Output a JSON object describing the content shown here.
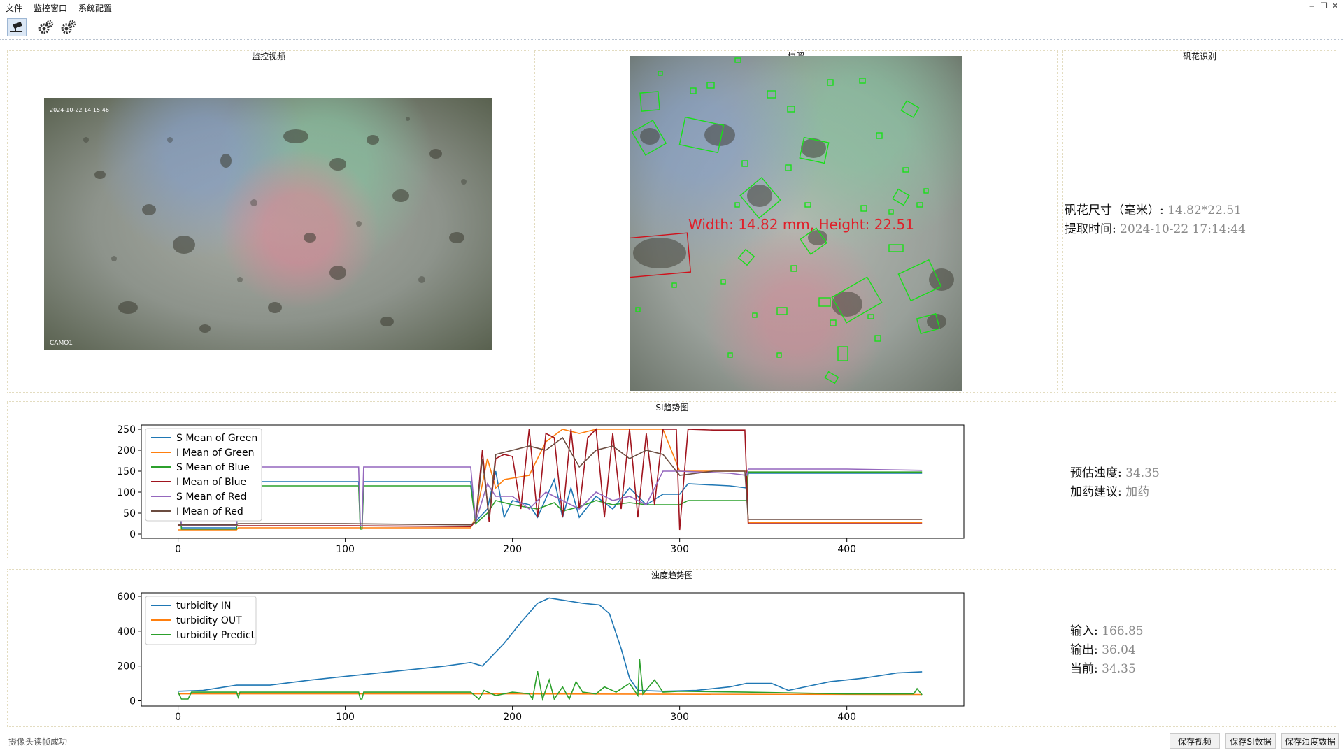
{
  "menu": {
    "file": "文件",
    "monitor_window": "监控窗口",
    "system_config": "系统配置"
  },
  "toolbar": {
    "icons": [
      "camera-icon",
      "gear-icon",
      "gear-icon"
    ]
  },
  "panels": {
    "monitor_video": "监控视频",
    "snapshot": "快照",
    "alum_floc_recognition": "矾花识别",
    "si_trend": "SI趋势图",
    "turbidity_trend": "浊度趋势图"
  },
  "camera": {
    "timestamp": "2024-10-22 14:15:46",
    "label": "CAMO1"
  },
  "snapshot": {
    "annotation": "Width: 14.82 mm, Height: 22.51"
  },
  "floc": {
    "size_label": "矾花尺寸（毫米）:",
    "size_value": "14.82*22.51",
    "time_label": "提取时间:",
    "time_value": "2024-10-22 17:14:44"
  },
  "si_info": {
    "estimated_label": "预估浊度:",
    "estimated_value": "34.35",
    "advice_label": "加药建议:",
    "advice_value": "加药"
  },
  "turbidity_info": {
    "input_label": "输入:",
    "input_value": "166.85",
    "output_label": "输出:",
    "output_value": "36.04",
    "current_label": "当前:",
    "current_value": "34.35"
  },
  "chart_data": [
    {
      "type": "line",
      "xlim": [
        -22,
        470
      ],
      "ylim": [
        -10,
        260
      ],
      "xticks": [
        0,
        100,
        200,
        300,
        400
      ],
      "yticks": [
        0,
        50,
        100,
        150,
        200,
        250
      ],
      "legend_position": "upper-left",
      "series": [
        {
          "name": "S Mean of Green",
          "color": "#1f77b4",
          "points": [
            [
              0,
              120
            ],
            [
              2,
              15
            ],
            [
              35,
              15
            ],
            [
              36,
              125
            ],
            [
              100,
              125
            ],
            [
              108,
              125
            ],
            [
              109,
              15
            ],
            [
              110,
              15
            ],
            [
              111,
              125
            ],
            [
              175,
              125
            ],
            [
              178,
              30
            ],
            [
              185,
              60
            ],
            [
              190,
              150
            ],
            [
              195,
              40
            ],
            [
              200,
              80
            ],
            [
              210,
              70
            ],
            [
              215,
              40
            ],
            [
              225,
              130
            ],
            [
              230,
              40
            ],
            [
              235,
              110
            ],
            [
              240,
              40
            ],
            [
              250,
              90
            ],
            [
              260,
              60
            ],
            [
              270,
              110
            ],
            [
              280,
              70
            ],
            [
              290,
              95
            ],
            [
              300,
              95
            ],
            [
              305,
              120
            ],
            [
              330,
              115
            ],
            [
              340,
              110
            ],
            [
              341,
              145
            ],
            [
              400,
              145
            ],
            [
              445,
              145
            ]
          ]
        },
        {
          "name": "I Mean of Green",
          "color": "#ff7f0e",
          "points": [
            [
              0,
              10
            ],
            [
              35,
              10
            ],
            [
              36,
              15
            ],
            [
              100,
              15
            ],
            [
              175,
              15
            ],
            [
              178,
              40
            ],
            [
              185,
              180
            ],
            [
              190,
              110
            ],
            [
              195,
              130
            ],
            [
              210,
              140
            ],
            [
              220,
              220
            ],
            [
              230,
              250
            ],
            [
              240,
              240
            ],
            [
              250,
              250
            ],
            [
              260,
              250
            ],
            [
              270,
              250
            ],
            [
              280,
              250
            ],
            [
              290,
              250
            ],
            [
              300,
              150
            ],
            [
              320,
              150
            ],
            [
              340,
              150
            ],
            [
              341,
              28
            ],
            [
              445,
              28
            ]
          ]
        },
        {
          "name": "S Mean of Blue",
          "color": "#2ca02c",
          "points": [
            [
              0,
              115
            ],
            [
              2,
              12
            ],
            [
              35,
              12
            ],
            [
              36,
              115
            ],
            [
              100,
              115
            ],
            [
              108,
              115
            ],
            [
              109,
              12
            ],
            [
              110,
              12
            ],
            [
              111,
              115
            ],
            [
              175,
              115
            ],
            [
              178,
              25
            ],
            [
              185,
              50
            ],
            [
              190,
              80
            ],
            [
              200,
              70
            ],
            [
              215,
              60
            ],
            [
              225,
              75
            ],
            [
              230,
              55
            ],
            [
              240,
              65
            ],
            [
              250,
              80
            ],
            [
              260,
              70
            ],
            [
              270,
              75
            ],
            [
              280,
              70
            ],
            [
              300,
              70
            ],
            [
              305,
              80
            ],
            [
              340,
              80
            ],
            [
              341,
              148
            ],
            [
              400,
              148
            ],
            [
              445,
              148
            ]
          ]
        },
        {
          "name": "I Mean of Blue",
          "color": "#a0141e",
          "points": [
            [
              0,
              20
            ],
            [
              35,
              20
            ],
            [
              36,
              20
            ],
            [
              100,
              20
            ],
            [
              175,
              18
            ],
            [
              178,
              30
            ],
            [
              182,
              200
            ],
            [
              186,
              30
            ],
            [
              190,
              180
            ],
            [
              195,
              190
            ],
            [
              200,
              185
            ],
            [
              205,
              60
            ],
            [
              210,
              250
            ],
            [
              215,
              40
            ],
            [
              220,
              240
            ],
            [
              225,
              230
            ],
            [
              230,
              40
            ],
            [
              235,
              250
            ],
            [
              240,
              60
            ],
            [
              245,
              230
            ],
            [
              250,
              250
            ],
            [
              255,
              40
            ],
            [
              260,
              240
            ],
            [
              265,
              60
            ],
            [
              270,
              250
            ],
            [
              275,
              40
            ],
            [
              280,
              240
            ],
            [
              285,
              70
            ],
            [
              290,
              250
            ],
            [
              298,
              250
            ],
            [
              300,
              10
            ],
            [
              305,
              250
            ],
            [
              320,
              248
            ],
            [
              339,
              248
            ],
            [
              341,
              25
            ],
            [
              445,
              25
            ]
          ]
        },
        {
          "name": "S Mean of Red",
          "color": "#9467bd",
          "points": [
            [
              0,
              165
            ],
            [
              2,
              20
            ],
            [
              35,
              20
            ],
            [
              36,
              160
            ],
            [
              100,
              160
            ],
            [
              108,
              160
            ],
            [
              109,
              20
            ],
            [
              110,
              20
            ],
            [
              111,
              160
            ],
            [
              175,
              160
            ],
            [
              178,
              30
            ],
            [
              185,
              120
            ],
            [
              190,
              90
            ],
            [
              200,
              90
            ],
            [
              210,
              60
            ],
            [
              220,
              100
            ],
            [
              230,
              80
            ],
            [
              240,
              60
            ],
            [
              250,
              100
            ],
            [
              260,
              80
            ],
            [
              270,
              90
            ],
            [
              280,
              70
            ],
            [
              290,
              150
            ],
            [
              300,
              150
            ],
            [
              330,
              145
            ],
            [
              340,
              140
            ],
            [
              341,
              155
            ],
            [
              400,
              155
            ],
            [
              445,
              152
            ]
          ]
        },
        {
          "name": "I Mean of Red",
          "color": "#6b4c40",
          "points": [
            [
              0,
              22
            ],
            [
              35,
              22
            ],
            [
              36,
              25
            ],
            [
              100,
              25
            ],
            [
              175,
              22
            ],
            [
              178,
              30
            ],
            [
              182,
              180
            ],
            [
              186,
              40
            ],
            [
              190,
              190
            ],
            [
              200,
              200
            ],
            [
              210,
              210
            ],
            [
              220,
              200
            ],
            [
              230,
              230
            ],
            [
              240,
              160
            ],
            [
              250,
              200
            ],
            [
              260,
              210
            ],
            [
              270,
              180
            ],
            [
              280,
              200
            ],
            [
              290,
              190
            ],
            [
              300,
              140
            ],
            [
              320,
              150
            ],
            [
              339,
              150
            ],
            [
              341,
              35
            ],
            [
              445,
              35
            ]
          ]
        }
      ]
    },
    {
      "type": "line",
      "xlim": [
        -22,
        470
      ],
      "ylim": [
        -30,
        620
      ],
      "xticks": [
        0,
        100,
        200,
        300,
        400
      ],
      "yticks": [
        0,
        200,
        400,
        600
      ],
      "legend_position": "upper-left",
      "series": [
        {
          "name": "turbidity IN",
          "color": "#1f77b4",
          "points": [
            [
              0,
              55
            ],
            [
              15,
              60
            ],
            [
              35,
              90
            ],
            [
              55,
              90
            ],
            [
              80,
              120
            ],
            [
              100,
              140
            ],
            [
              120,
              160
            ],
            [
              140,
              180
            ],
            [
              160,
              200
            ],
            [
              175,
              220
            ],
            [
              182,
              200
            ],
            [
              195,
              330
            ],
            [
              205,
              450
            ],
            [
              215,
              560
            ],
            [
              222,
              590
            ],
            [
              232,
              575
            ],
            [
              242,
              560
            ],
            [
              252,
              550
            ],
            [
              258,
              500
            ],
            [
              265,
              300
            ],
            [
              270,
              130
            ],
            [
              275,
              60
            ],
            [
              290,
              55
            ],
            [
              310,
              60
            ],
            [
              330,
              80
            ],
            [
              340,
              100
            ],
            [
              355,
              100
            ],
            [
              365,
              60
            ],
            [
              375,
              80
            ],
            [
              390,
              110
            ],
            [
              410,
              130
            ],
            [
              430,
              160
            ],
            [
              445,
              166.85
            ]
          ]
        },
        {
          "name": "turbidity OUT",
          "color": "#ff7f0e",
          "points": [
            [
              0,
              40
            ],
            [
              100,
              40
            ],
            [
              200,
              40
            ],
            [
              300,
              38
            ],
            [
              400,
              37
            ],
            [
              445,
              36.04
            ]
          ]
        },
        {
          "name": "turbidity Predict",
          "color": "#2ca02c",
          "points": [
            [
              0,
              50
            ],
            [
              2,
              10
            ],
            [
              6,
              10
            ],
            [
              8,
              50
            ],
            [
              35,
              50
            ],
            [
              36,
              20
            ],
            [
              37,
              50
            ],
            [
              108,
              50
            ],
            [
              109,
              10
            ],
            [
              110,
              10
            ],
            [
              111,
              50
            ],
            [
              175,
              50
            ],
            [
              180,
              10
            ],
            [
              183,
              60
            ],
            [
              190,
              30
            ],
            [
              200,
              50
            ],
            [
              210,
              40
            ],
            [
              212,
              10
            ],
            [
              215,
              170
            ],
            [
              218,
              10
            ],
            [
              222,
              120
            ],
            [
              225,
              10
            ],
            [
              230,
              80
            ],
            [
              234,
              10
            ],
            [
              238,
              110
            ],
            [
              242,
              50
            ],
            [
              250,
              40
            ],
            [
              255,
              80
            ],
            [
              262,
              50
            ],
            [
              270,
              100
            ],
            [
              275,
              30
            ],
            [
              276,
              240
            ],
            [
              278,
              40
            ],
            [
              285,
              120
            ],
            [
              290,
              50
            ],
            [
              300,
              55
            ],
            [
              340,
              50
            ],
            [
              400,
              40
            ],
            [
              440,
              40
            ],
            [
              442,
              70
            ],
            [
              445,
              34.35
            ]
          ]
        }
      ]
    }
  ],
  "status": {
    "message": "摄像头读帧成功"
  },
  "buttons": {
    "save_video": "保存视频",
    "save_si": "保存SI数据",
    "save_turbidity": "保存浊度数据"
  }
}
